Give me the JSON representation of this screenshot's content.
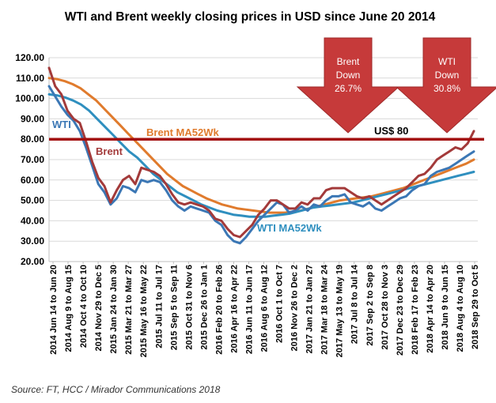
{
  "chart_data": {
    "type": "line",
    "title": "WTI and Brent weekly closing prices in USD since June 20 2014",
    "source": "Source: FT, HCC / Mirador Communications 2018",
    "ylim": [
      20,
      120
    ],
    "yticks": [
      "20.00",
      "30.00",
      "40.00",
      "50.00",
      "60.00",
      "70.00",
      "80.00",
      "90.00",
      "100.00",
      "110.00",
      "120.00"
    ],
    "x_tick_labels": [
      "2014 Jun 14 to Jun 20",
      "2014 Aug 9 to Aug 15",
      "2014 Oct 4 to Oct 10",
      "2014 Nov 29 to Dec 5",
      "2015 Jan 24 to Jan 30",
      "2015 Mar 21 to Mar 27",
      "2015 May 16 to May 22",
      "2015 Jul 11 to Jul 17",
      "2015 Sep 5 to Sep 11",
      "2015 Oct 31 to Nov 6",
      "2015 Dec 26 to Jan 1",
      "2016 Feb 20 to Feb 26",
      "2016 Apr 16 to Apr 22",
      "2016 Jun 11 to Jun 17",
      "2016 Aug 6 to Aug 12",
      "2016 Oct 1 to Oct 7",
      "2016 Nov 26 to Dec 2",
      "2017 Jan 21 to Jan 27",
      "2017 Mar 18 to Mar 24",
      "2017 May 13 to May 19",
      "2017 Jul 8 to Jul 14",
      "2017 Sep 2 to Sep 8",
      "2017 Oct 28 to Nov 3",
      "2017 Dec 23 to Dec 29",
      "2018 Feb 17 to Feb 23",
      "2018 Apr 14 to Apr 20",
      "2018 Jun 9 to Jun 15",
      "2018 Aug 4 to Aug 10",
      "2018 Sep 29 to Oct 5"
    ],
    "series": [
      {
        "name": "WTI",
        "color": "#3b77b5",
        "values": [
          106,
          101,
          96,
          92,
          89,
          84,
          76,
          67,
          58,
          54,
          48,
          51,
          57,
          56,
          54,
          60,
          59,
          60,
          59,
          55,
          50,
          47,
          45,
          47,
          46,
          45,
          44,
          40,
          38,
          33,
          30,
          29,
          32,
          36,
          40,
          43,
          46,
          49,
          48,
          44,
          45,
          47,
          45,
          48,
          47,
          50,
          52,
          52,
          53,
          49,
          48,
          47,
          49,
          46,
          45,
          47,
          49,
          51,
          52,
          55,
          57,
          58,
          62,
          64,
          65,
          66,
          68,
          70,
          72,
          74
        ]
      },
      {
        "name": "Brent",
        "color": "#a33a3a",
        "values": [
          115,
          106,
          102,
          94,
          90,
          88,
          79,
          69,
          61,
          57,
          49,
          55,
          60,
          62,
          58,
          66,
          65,
          64,
          62,
          58,
          53,
          49,
          48,
          49,
          48,
          47,
          45,
          41,
          40,
          36,
          33,
          32,
          35,
          38,
          43,
          46,
          50,
          50,
          48,
          46,
          46,
          49,
          48,
          51,
          51,
          55,
          56,
          56,
          56,
          54,
          52,
          51,
          52,
          50,
          48,
          50,
          52,
          54,
          56,
          59,
          62,
          63,
          66,
          70,
          72,
          74,
          76,
          75,
          78,
          84
        ]
      },
      {
        "name": "Brent MA52Wk",
        "color": "#e07b2d",
        "values": [
          110,
          109.5,
          108.5,
          107,
          105,
          102,
          99,
          95,
          91,
          87,
          83,
          79,
          75,
          71,
          67,
          63,
          60,
          57,
          55,
          53,
          51,
          49.5,
          48,
          47,
          46,
          45.5,
          45,
          44.5,
          44,
          44,
          44,
          44.5,
          45,
          46,
          47,
          48,
          49,
          50,
          50.5,
          51,
          51.5,
          52,
          53,
          54,
          55,
          56,
          57.5,
          59,
          60.5,
          62,
          63.5,
          65,
          66.5,
          68,
          70
        ]
      },
      {
        "name": "WTI MA52Wk",
        "color": "#2f8fbf",
        "values": [
          102,
          101.5,
          100.5,
          99,
          97,
          94,
          90,
          86,
          82,
          78,
          74,
          71,
          67,
          63,
          60,
          57,
          54,
          52,
          50,
          48,
          46.5,
          45,
          44,
          43,
          42.5,
          42,
          42,
          42,
          42.5,
          43,
          43.5,
          44.5,
          45.5,
          46.5,
          47,
          47.5,
          48,
          48.5,
          49,
          50,
          51,
          52,
          53,
          54,
          55,
          56,
          57,
          58,
          59,
          60,
          61,
          62,
          63,
          64
        ]
      }
    ],
    "reference_line": {
      "value": 80,
      "label": "US$ 80",
      "color": "#a30f0f"
    },
    "annotations": [
      {
        "line1": "Brent",
        "line2": "Down",
        "line3": "26.7%"
      },
      {
        "line1": "WTI",
        "line2": "Down",
        "line3": "30.8%"
      }
    ],
    "series_labels": {
      "wti": "WTI",
      "brent": "Brent",
      "brent_ma": "Brent MA52Wk",
      "wti_ma": "WTI MA52Wk"
    }
  }
}
